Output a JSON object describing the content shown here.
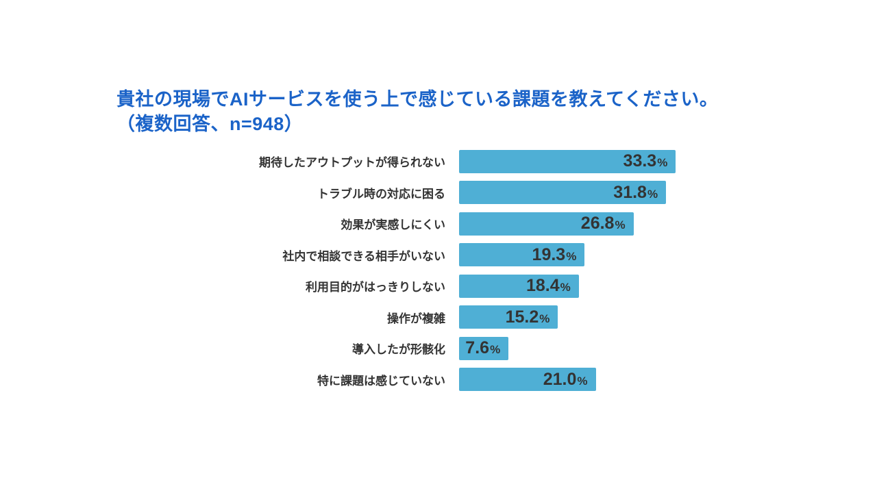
{
  "chart_data": {
    "type": "bar",
    "orientation": "horizontal",
    "title": "貴社の現場でAIサービスを使う上で感じている課題を教えてください。",
    "subtitle": "（複数回答、n=948）",
    "categories": [
      "期待したアウトプットが得られない",
      "トラブル時の対応に困る",
      "効果が実感しにくい",
      "社内で相談できる相手がいない",
      "利用目的がはっきりしない",
      "操作が複雑",
      "導入したが形骸化",
      "特に課題は感じていない"
    ],
    "values": [
      33.3,
      31.8,
      26.8,
      19.3,
      18.4,
      15.2,
      7.6,
      21.0
    ],
    "value_labels": [
      "33.3",
      "31.8",
      "26.8",
      "19.3",
      "18.4",
      "15.2",
      "7.6",
      "21.0"
    ],
    "unit": "%",
    "xlim": [
      0,
      35
    ],
    "grid": false,
    "legend": "none",
    "value_label_position": "inside-right",
    "colors": {
      "bar": "#4fafd5",
      "title": "#1b63c8",
      "category_label": "#333333",
      "value_label": "#333333",
      "background": "#ffffff"
    }
  }
}
